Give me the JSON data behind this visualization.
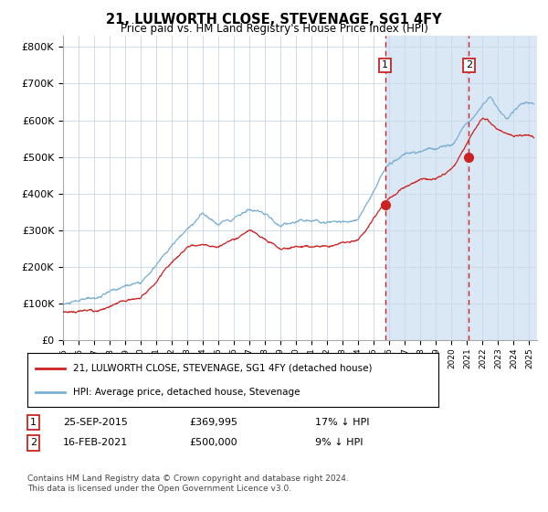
{
  "title": "21, LULWORTH CLOSE, STEVENAGE, SG1 4FY",
  "subtitle": "Price paid vs. HM Land Registry's House Price Index (HPI)",
  "legend_line1": "21, LULWORTH CLOSE, STEVENAGE, SG1 4FY (detached house)",
  "legend_line2": "HPI: Average price, detached house, Stevenage",
  "annotation1_date": "25-SEP-2015",
  "annotation1_price": "£369,995",
  "annotation1_hpi": "17% ↓ HPI",
  "annotation1_year": 2015.73,
  "annotation1_value": 369995,
  "annotation2_date": "16-FEB-2021",
  "annotation2_price": "£500,000",
  "annotation2_hpi": "9% ↓ HPI",
  "annotation2_year": 2021.12,
  "annotation2_value": 500000,
  "yticks": [
    0,
    100000,
    200000,
    300000,
    400000,
    500000,
    600000,
    700000,
    800000
  ],
  "ylim": [
    0,
    830000
  ],
  "hpi_line_color": "#7bafd4",
  "hpi_fill_color": "#c8dff0",
  "price_color": "#cc2222",
  "grid_color": "#c8d8e8",
  "shaded_color": "#dae8f5",
  "footer_text": "Contains HM Land Registry data © Crown copyright and database right 2024.\nThis data is licensed under the Open Government Licence v3.0."
}
